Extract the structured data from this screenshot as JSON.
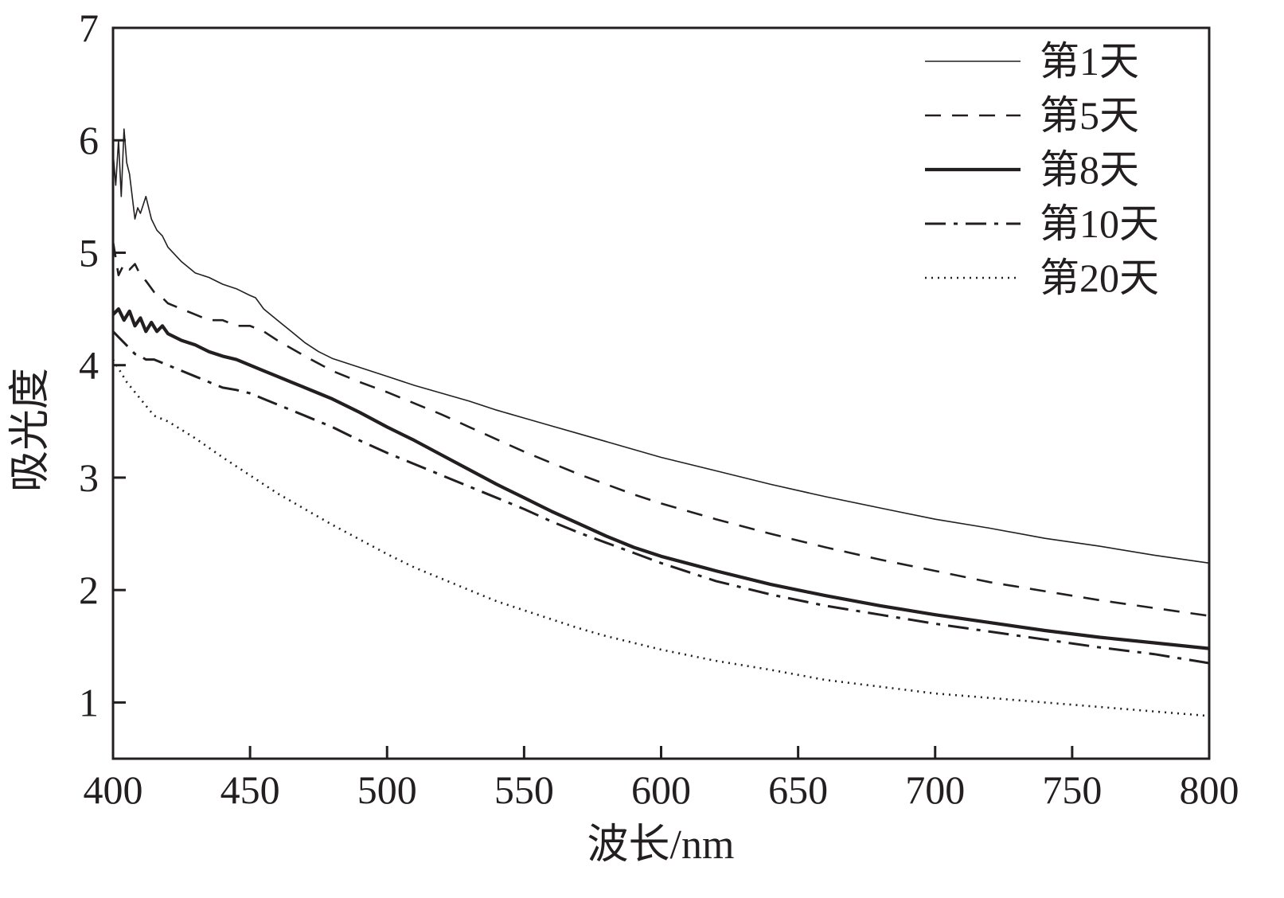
{
  "chart_data": {
    "type": "line",
    "title": "",
    "xlabel": "波长/nm",
    "ylabel": "吸光度",
    "xlim": [
      400,
      800
    ],
    "ylim": [
      0.5,
      7
    ],
    "xticks": [
      400,
      450,
      500,
      550,
      600,
      650,
      700,
      750,
      800
    ],
    "xtick_labels": [
      "400",
      "450",
      "500",
      "550",
      "600",
      "650",
      "700",
      "750",
      "800"
    ],
    "yticks": [
      1,
      2,
      3,
      4,
      5,
      6,
      7
    ],
    "ytick_labels": [
      "1",
      "2",
      "3",
      "4",
      "5",
      "6",
      "7"
    ],
    "grid": false,
    "legend_position": "top-right",
    "series": [
      {
        "name": "第1天",
        "style": "thin-solid",
        "x": [
          400,
          401,
          402,
          403,
          404,
          405,
          406,
          407,
          408,
          409,
          410,
          412,
          414,
          416,
          418,
          420,
          425,
          430,
          435,
          440,
          445,
          450,
          452,
          455,
          460,
          465,
          470,
          475,
          480,
          490,
          500,
          510,
          520,
          530,
          540,
          550,
          560,
          570,
          580,
          590,
          600,
          620,
          640,
          660,
          680,
          700,
          720,
          740,
          760,
          780,
          800
        ],
        "y": [
          5.9,
          5.6,
          6.0,
          5.5,
          6.1,
          5.8,
          5.7,
          5.5,
          5.3,
          5.4,
          5.35,
          5.5,
          5.3,
          5.2,
          5.15,
          5.05,
          4.92,
          4.82,
          4.78,
          4.72,
          4.68,
          4.62,
          4.6,
          4.5,
          4.4,
          4.3,
          4.2,
          4.12,
          4.06,
          3.98,
          3.9,
          3.82,
          3.75,
          3.68,
          3.6,
          3.53,
          3.46,
          3.39,
          3.32,
          3.25,
          3.18,
          3.06,
          2.94,
          2.83,
          2.73,
          2.63,
          2.55,
          2.46,
          2.39,
          2.31,
          2.24
        ]
      },
      {
        "name": "第5天",
        "style": "dashed",
        "x": [
          400,
          402,
          404,
          406,
          408,
          410,
          412,
          415,
          418,
          420,
          425,
          430,
          435,
          440,
          445,
          450,
          455,
          460,
          465,
          470,
          480,
          490,
          500,
          510,
          520,
          530,
          540,
          550,
          560,
          570,
          580,
          590,
          600,
          620,
          640,
          660,
          680,
          700,
          720,
          740,
          760,
          780,
          800
        ],
        "y": [
          5.1,
          4.8,
          4.9,
          4.85,
          4.9,
          4.8,
          4.75,
          4.65,
          4.6,
          4.55,
          4.5,
          4.45,
          4.4,
          4.4,
          4.35,
          4.35,
          4.3,
          4.22,
          4.15,
          4.08,
          3.95,
          3.85,
          3.76,
          3.66,
          3.56,
          3.45,
          3.34,
          3.23,
          3.13,
          3.03,
          2.94,
          2.85,
          2.77,
          2.63,
          2.5,
          2.38,
          2.27,
          2.17,
          2.07,
          1.99,
          1.91,
          1.84,
          1.77
        ]
      },
      {
        "name": "第8天",
        "style": "thick-solid",
        "x": [
          400,
          402,
          404,
          406,
          408,
          410,
          412,
          414,
          416,
          418,
          420,
          425,
          430,
          435,
          440,
          445,
          450,
          455,
          460,
          465,
          470,
          475,
          480,
          490,
          500,
          510,
          520,
          530,
          540,
          550,
          560,
          570,
          580,
          590,
          600,
          620,
          640,
          660,
          680,
          700,
          720,
          740,
          760,
          780,
          800
        ],
        "y": [
          4.45,
          4.5,
          4.4,
          4.48,
          4.35,
          4.42,
          4.3,
          4.38,
          4.3,
          4.35,
          4.28,
          4.22,
          4.18,
          4.12,
          4.08,
          4.05,
          4.0,
          3.95,
          3.9,
          3.85,
          3.8,
          3.75,
          3.7,
          3.58,
          3.45,
          3.33,
          3.2,
          3.07,
          2.94,
          2.82,
          2.7,
          2.59,
          2.48,
          2.38,
          2.3,
          2.17,
          2.05,
          1.95,
          1.86,
          1.78,
          1.71,
          1.64,
          1.58,
          1.53,
          1.48
        ]
      },
      {
        "name": "第10天",
        "style": "dash-dot",
        "x": [
          400,
          402,
          404,
          406,
          408,
          410,
          412,
          415,
          418,
          420,
          425,
          430,
          435,
          440,
          445,
          450,
          455,
          460,
          470,
          480,
          490,
          500,
          510,
          520,
          530,
          540,
          550,
          560,
          570,
          580,
          590,
          600,
          620,
          640,
          660,
          680,
          700,
          720,
          740,
          760,
          780,
          800
        ],
        "y": [
          4.3,
          4.25,
          4.2,
          4.15,
          4.1,
          4.08,
          4.05,
          4.05,
          4.02,
          4.0,
          3.95,
          3.9,
          3.85,
          3.8,
          3.78,
          3.75,
          3.7,
          3.65,
          3.55,
          3.45,
          3.33,
          3.22,
          3.12,
          3.02,
          2.92,
          2.82,
          2.72,
          2.61,
          2.51,
          2.42,
          2.33,
          2.24,
          2.08,
          1.96,
          1.86,
          1.78,
          1.7,
          1.63,
          1.56,
          1.49,
          1.43,
          1.35
        ]
      },
      {
        "name": "第20天",
        "style": "dotted",
        "x": [
          400,
          405,
          410,
          415,
          420,
          430,
          440,
          450,
          460,
          470,
          480,
          490,
          500,
          510,
          520,
          530,
          540,
          550,
          560,
          570,
          580,
          590,
          600,
          620,
          640,
          660,
          680,
          700,
          720,
          740,
          760,
          780,
          800
        ],
        "y": [
          4.05,
          3.85,
          3.7,
          3.55,
          3.5,
          3.35,
          3.18,
          3.02,
          2.86,
          2.72,
          2.58,
          2.45,
          2.32,
          2.2,
          2.1,
          2.0,
          1.9,
          1.82,
          1.74,
          1.66,
          1.59,
          1.53,
          1.47,
          1.37,
          1.29,
          1.2,
          1.14,
          1.08,
          1.04,
          1.0,
          0.96,
          0.92,
          0.88
        ]
      }
    ]
  }
}
